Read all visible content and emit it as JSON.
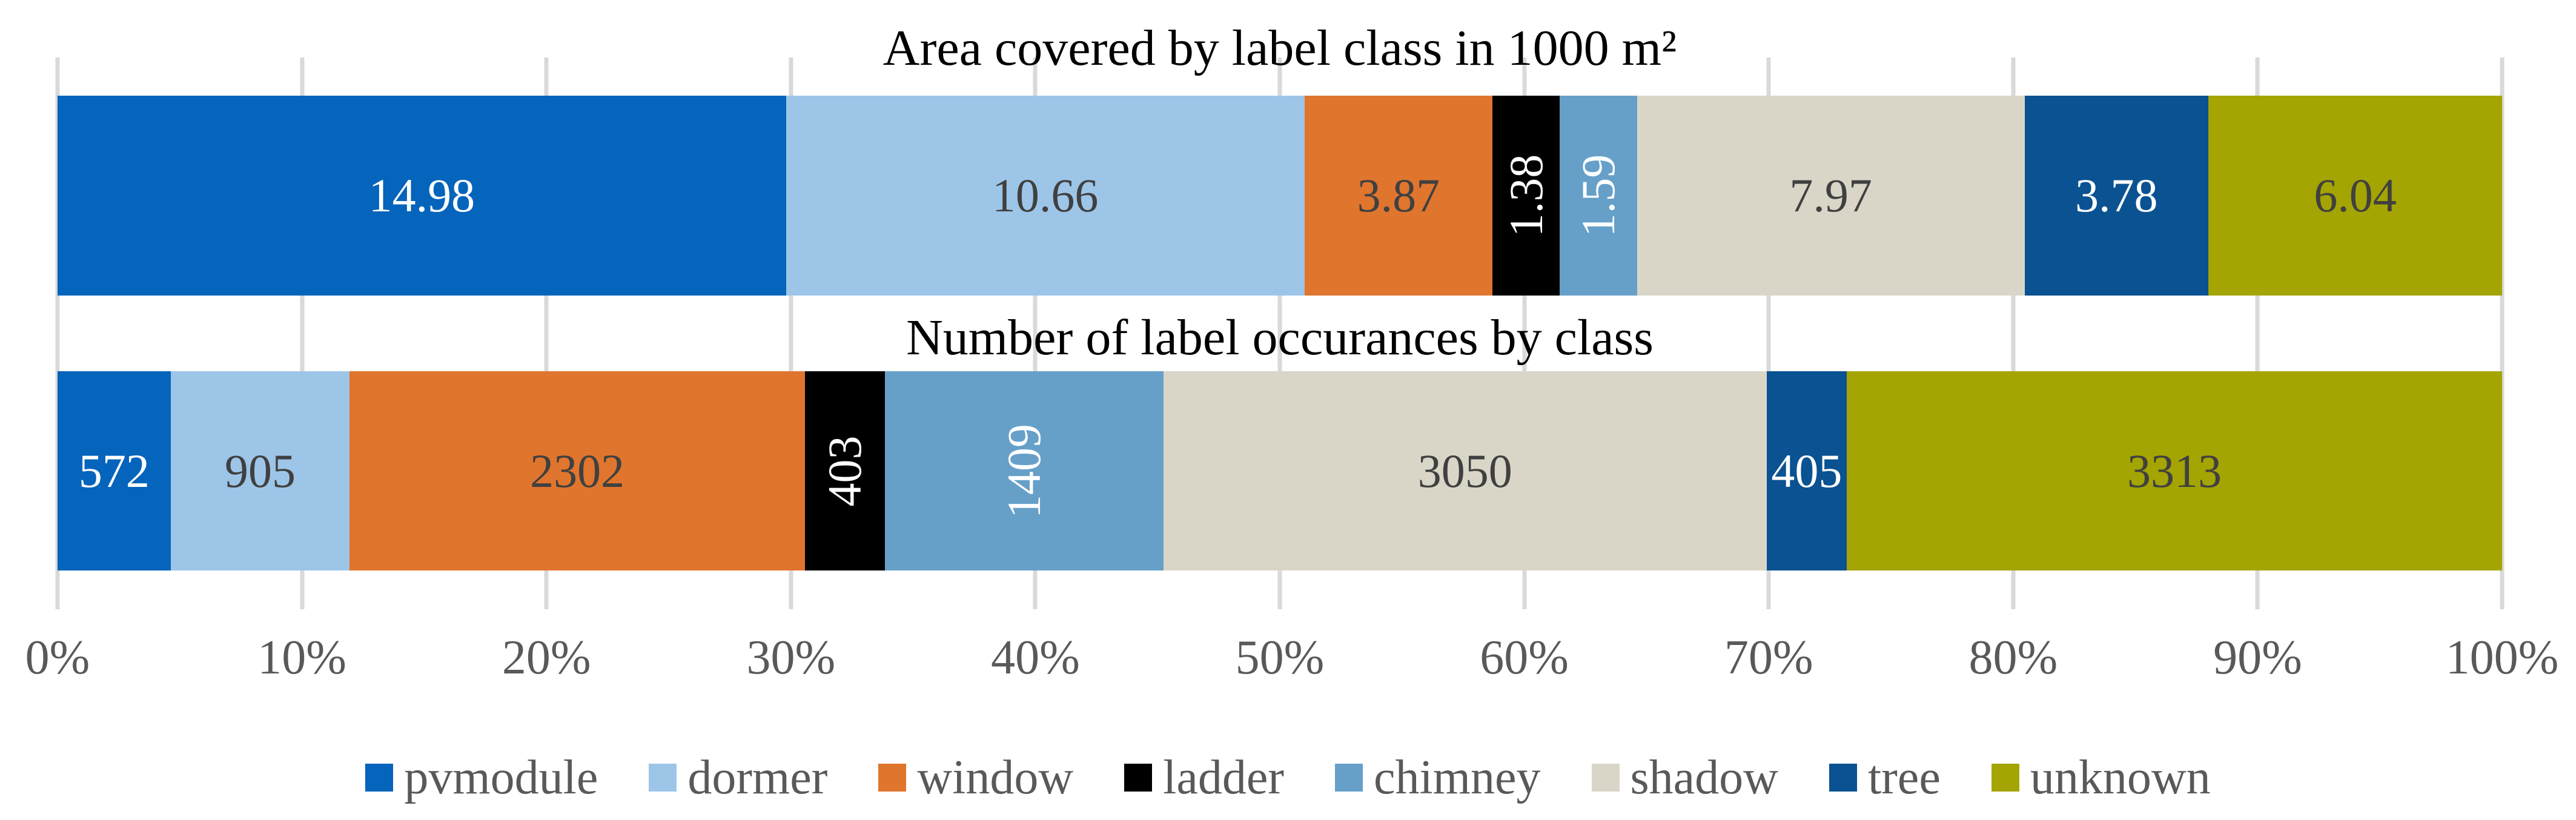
{
  "figure": {
    "background": "#FFFFFF",
    "gridline_color": "#D9D9D9",
    "axis_text_color": "#595959",
    "title_text_color": "#000000",
    "dark_label_color": "#404040",
    "light_label_color": "#FFFFFF"
  },
  "axis": {
    "ticks": [
      "0%",
      "10%",
      "20%",
      "30%",
      "40%",
      "50%",
      "60%",
      "70%",
      "80%",
      "90%",
      "100%"
    ]
  },
  "legend": {
    "items": [
      {
        "label": "pvmodule",
        "color": "#0564BB"
      },
      {
        "label": "dormer",
        "color": "#9DC5E8"
      },
      {
        "label": "window",
        "color": "#E0752D"
      },
      {
        "label": "ladder",
        "color": "#000000"
      },
      {
        "label": "chimney",
        "color": "#66A0C9"
      },
      {
        "label": "shadow",
        "color": "#D9D6C8"
      },
      {
        "label": "tree",
        "color": "#0A5291"
      },
      {
        "label": "unknown",
        "color": "#A4A402"
      }
    ]
  },
  "chart_data": [
    {
      "type": "bar",
      "subtype": "stacked-100-horizontal",
      "title": "Area covered by label class in 1000 m²",
      "categories": [
        "pvmodule",
        "dormer",
        "window",
        "ladder",
        "chimney",
        "shadow",
        "tree",
        "unknown"
      ],
      "values": [
        14.98,
        10.66,
        3.87,
        1.38,
        1.59,
        7.97,
        3.78,
        6.04
      ],
      "labels": [
        "14.98",
        "10.66",
        "3.87",
        "1.38",
        "1.59",
        "7.97",
        "3.78",
        "6.04"
      ],
      "label_dark": [
        false,
        true,
        true,
        false,
        false,
        true,
        false,
        true
      ],
      "label_rotated": [
        false,
        false,
        false,
        true,
        true,
        false,
        false,
        false
      ],
      "xlabel": "",
      "ylabel": "",
      "xlim": [
        0,
        100
      ],
      "grid": true,
      "legend_position": "bottom"
    },
    {
      "type": "bar",
      "subtype": "stacked-100-horizontal",
      "title": "Number of label occurances by class",
      "categories": [
        "pvmodule",
        "dormer",
        "window",
        "ladder",
        "chimney",
        "shadow",
        "tree",
        "unknown"
      ],
      "values": [
        572,
        905,
        2302,
        403,
        1409,
        3050,
        405,
        3313
      ],
      "labels": [
        "572",
        "905",
        "2302",
        "403",
        "1409",
        "3050",
        "405",
        "3313"
      ],
      "label_dark": [
        false,
        true,
        true,
        false,
        false,
        true,
        false,
        true
      ],
      "label_rotated": [
        false,
        false,
        false,
        true,
        true,
        false,
        false,
        false
      ],
      "xlabel": "",
      "ylabel": "",
      "xlim": [
        0,
        100
      ],
      "grid": true,
      "legend_position": "bottom"
    }
  ]
}
